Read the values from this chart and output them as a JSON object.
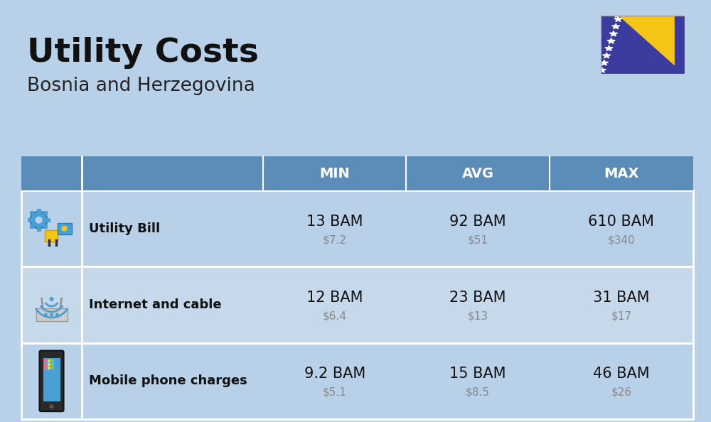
{
  "title": "Utility Costs",
  "subtitle": "Bosnia and Herzegovina",
  "background_color": "#b8d0e8",
  "header_bg_color": "#5b8db8",
  "header_text_color": "#ffffff",
  "row_bg_color_alt": "#c5d9ea",
  "table_border_color": "#5b8db8",
  "headers": [
    "MIN",
    "AVG",
    "MAX"
  ],
  "rows": [
    {
      "label": "Utility Bill",
      "icon": "utility",
      "min_bam": "13 BAM",
      "min_usd": "$7.2",
      "avg_bam": "92 BAM",
      "avg_usd": "$51",
      "max_bam": "610 BAM",
      "max_usd": "$340"
    },
    {
      "label": "Internet and cable",
      "icon": "internet",
      "min_bam": "12 BAM",
      "min_usd": "$6.4",
      "avg_bam": "23 BAM",
      "avg_usd": "$13",
      "max_bam": "31 BAM",
      "max_usd": "$17"
    },
    {
      "label": "Mobile phone charges",
      "icon": "mobile",
      "min_bam": "9.2 BAM",
      "min_usd": "$5.1",
      "avg_bam": "15 BAM",
      "avg_usd": "$8.5",
      "max_bam": "46 BAM",
      "max_usd": "$26"
    }
  ],
  "title_fontsize": 34,
  "subtitle_fontsize": 19,
  "header_fontsize": 14,
  "label_fontsize": 13,
  "value_fontsize": 15,
  "usd_fontsize": 11,
  "title_color": "#111111",
  "subtitle_color": "#222222",
  "label_color": "#111111",
  "value_color": "#111111",
  "usd_color": "#888888"
}
